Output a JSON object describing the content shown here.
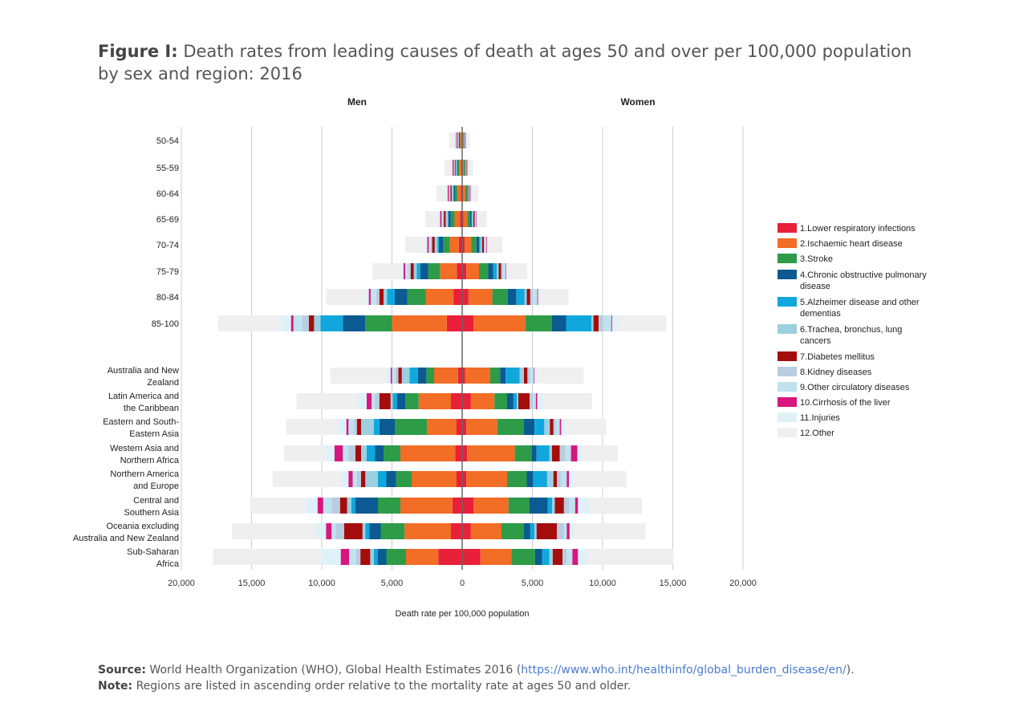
{
  "header": {
    "figure_label": "Figure I:",
    "title_text": "Death rates from leading causes of death at ages 50 and over per 100,000 population by sex and region: 2016"
  },
  "footer": {
    "source_label": "Source:",
    "source_text": "World Health Organization (WHO), Global Health Estimates 2016 (",
    "source_link": "https://www.who.int/healthinfo/global_burden_disease/en/",
    "source_end": ").",
    "note_label": "Note:",
    "note_text": "Regions are listed in ascending order relative to the mortality rate at ages 50 and older."
  },
  "chart_data": {
    "type": "bar",
    "subtype": "diverging stacked horizontal bar (population pyramid)",
    "left_panel_label": "Men",
    "right_panel_label": "Women",
    "xlabel": "Death rate per 100,000 population",
    "xlim": [
      -20000,
      20000
    ],
    "xticks": [
      -20000,
      -15000,
      -10000,
      -5000,
      0,
      5000,
      10000,
      15000,
      20000
    ],
    "xtick_labels": [
      "20,000",
      "15,000",
      "10,000",
      "5,000",
      "0",
      "5,000",
      "10,000",
      "15,000",
      "20,000"
    ],
    "grid": "vertical",
    "legend_position": "right",
    "series": [
      {
        "name": "1.Lower respiratory infections",
        "color": "#e8203a"
      },
      {
        "name": "2.Ischaemic heart disease",
        "color": "#f26d26"
      },
      {
        "name": "3.Stroke",
        "color": "#2e9b48"
      },
      {
        "name": "4.Chronic obstructive pulmonary disease",
        "color": "#0b5a91"
      },
      {
        "name": "5.Alzheimer disease and other dementias",
        "color": "#10a8dc"
      },
      {
        "name": "6.Trachea, bronchus, lung cancers",
        "color": "#9ccfe0"
      },
      {
        "name": "7.Diabetes mellitus",
        "color": "#a50d0d"
      },
      {
        "name": "8.Kidney diseases",
        "color": "#b8cde0"
      },
      {
        "name": "9.Other circulatory diseases",
        "color": "#bfe2ee"
      },
      {
        "name": "10.Cirrhosis of the liver",
        "color": "#d6177f"
      },
      {
        "name": "11.Injuries",
        "color": "#dff1f8"
      },
      {
        "name": "12.Other",
        "color": "#efefef"
      }
    ],
    "groups": [
      {
        "label": "50-54",
        "men": [
          40,
          100,
          60,
          30,
          5,
          60,
          40,
          20,
          30,
          60,
          120,
          350
        ],
        "women": [
          25,
          50,
          45,
          15,
          5,
          35,
          25,
          15,
          20,
          20,
          50,
          230
        ]
      },
      {
        "label": "55-59",
        "men": [
          60,
          160,
          100,
          50,
          10,
          90,
          60,
          30,
          45,
          80,
          130,
          450
        ],
        "women": [
          40,
          90,
          70,
          25,
          10,
          55,
          40,
          20,
          30,
          25,
          55,
          330
        ]
      },
      {
        "label": "60-64",
        "men": [
          90,
          260,
          170,
          90,
          20,
          120,
          90,
          40,
          70,
          90,
          140,
          650
        ],
        "women": [
          60,
          160,
          120,
          50,
          15,
          70,
          60,
          30,
          45,
          30,
          60,
          450
        ]
      },
      {
        "label": "65-69",
        "men": [
          140,
          400,
          280,
          160,
          40,
          160,
          130,
          60,
          100,
          100,
          160,
          900
        ],
        "women": [
          100,
          260,
          210,
          100,
          35,
          90,
          90,
          45,
          70,
          35,
          70,
          650
        ]
      },
      {
        "label": "70-74",
        "men": [
          240,
          650,
          480,
          290,
          100,
          200,
          180,
          90,
          150,
          110,
          180,
          1400
        ],
        "women": [
          170,
          480,
          370,
          190,
          90,
          120,
          130,
          70,
          110,
          40,
          80,
          1000
        ]
      },
      {
        "label": "75-79",
        "men": [
          380,
          1200,
          850,
          550,
          250,
          220,
          220,
          140,
          250,
          120,
          210,
          2000
        ],
        "women": [
          300,
          900,
          650,
          360,
          250,
          140,
          180,
          110,
          190,
          45,
          110,
          1400
        ]
      },
      {
        "label": "80-84",
        "men": [
          600,
          2000,
          1300,
          900,
          550,
          250,
          300,
          220,
          400,
          130,
          250,
          2800
        ],
        "women": [
          450,
          1700,
          1100,
          600,
          600,
          150,
          250,
          170,
          330,
          50,
          170,
          2000
        ]
      },
      {
        "label": "85-100",
        "men": [
          1100,
          3900,
          1900,
          1600,
          1600,
          450,
          370,
          450,
          650,
          170,
          700,
          4500
        ],
        "women": [
          800,
          3700,
          1900,
          1000,
          1800,
          150,
          370,
          300,
          600,
          60,
          450,
          3400
        ]
      },
      {
        "label": "Australia and New Zealand",
        "men": [
          300,
          1700,
          550,
          600,
          600,
          550,
          250,
          200,
          250,
          100,
          300,
          4000
        ],
        "women": [
          200,
          1800,
          700,
          400,
          1000,
          300,
          250,
          150,
          300,
          50,
          200,
          3300
        ]
      },
      {
        "label": "Latin America and the Caribbean",
        "men": [
          800,
          2300,
          950,
          600,
          300,
          150,
          800,
          300,
          250,
          350,
          700,
          4300
        ],
        "women": [
          600,
          1700,
          900,
          450,
          250,
          100,
          800,
          250,
          200,
          100,
          400,
          3500
        ]
      },
      {
        "label": "Eastern and South-Eastern Asia",
        "men": [
          400,
          2100,
          2300,
          1100,
          400,
          900,
          300,
          200,
          400,
          150,
          600,
          3700
        ],
        "women": [
          300,
          2200,
          1900,
          750,
          700,
          400,
          250,
          150,
          300,
          100,
          300,
          2900
        ]
      },
      {
        "label": "Western Asia and Northern Africa",
        "men": [
          500,
          3900,
          1200,
          600,
          600,
          400,
          400,
          500,
          400,
          600,
          600,
          3000
        ],
        "women": [
          350,
          3400,
          1200,
          350,
          900,
          200,
          550,
          400,
          400,
          450,
          300,
          2600
        ]
      },
      {
        "label": "Northern America and Europe",
        "men": [
          400,
          3200,
          1100,
          700,
          600,
          900,
          300,
          300,
          300,
          300,
          500,
          4900
        ],
        "women": [
          300,
          2900,
          1400,
          450,
          1000,
          450,
          250,
          250,
          450,
          150,
          300,
          3800
        ]
      },
      {
        "label": "Central and Southern Asia",
        "men": [
          700,
          3700,
          1600,
          1600,
          300,
          300,
          500,
          600,
          600,
          400,
          800,
          4000
        ],
        "women": [
          800,
          2500,
          1500,
          1300,
          300,
          200,
          650,
          350,
          450,
          200,
          750,
          3800
        ]
      },
      {
        "label": "Oceania excluding Australia and New Zealand",
        "men": [
          800,
          3300,
          1700,
          800,
          300,
          200,
          1300,
          600,
          300,
          400,
          700,
          6000
        ],
        "women": [
          600,
          2200,
          1600,
          450,
          300,
          150,
          1450,
          500,
          200,
          200,
          300,
          5100
        ]
      },
      {
        "label": "Sub-Saharan Africa",
        "men": [
          1700,
          2300,
          1400,
          600,
          300,
          250,
          700,
          300,
          500,
          600,
          1400,
          7700
        ],
        "women": [
          1300,
          2200,
          1700,
          500,
          500,
          250,
          700,
          300,
          400,
          400,
          700,
          6100
        ]
      }
    ]
  }
}
